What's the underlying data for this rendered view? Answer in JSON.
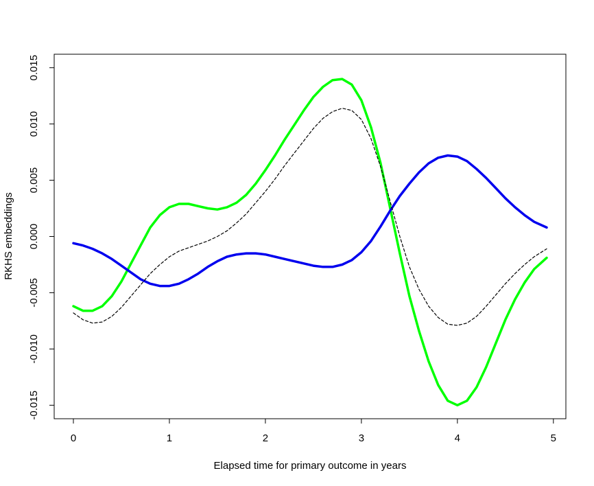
{
  "chart_data": {
    "type": "line",
    "title": "",
    "xlabel": "Elapsed time for primary outcome in years",
    "ylabel": "RKHS embeddings",
    "xlim": [
      -0.2,
      5.13
    ],
    "ylim": [
      -0.0162,
      0.0162
    ],
    "x_ticks": [
      0,
      1,
      2,
      3,
      4,
      5
    ],
    "x_tick_labels": [
      "0",
      "1",
      "2",
      "3",
      "4",
      "5"
    ],
    "y_ticks": [
      -0.015,
      -0.01,
      -0.005,
      0.0,
      0.005,
      0.01,
      0.015
    ],
    "y_tick_labels": [
      "-0.015",
      "-0.010",
      "-0.005",
      "0.000",
      "0.005",
      "0.010",
      "0.015"
    ],
    "grid": false,
    "legend": "none",
    "series": [
      {
        "color": "#00ff00",
        "style": "solid",
        "x": [
          0,
          0.1,
          0.2,
          0.3,
          0.4,
          0.5,
          0.6,
          0.7,
          0.8,
          0.9,
          1.0,
          1.1,
          1.2,
          1.3,
          1.4,
          1.5,
          1.6,
          1.7,
          1.8,
          1.9,
          2.0,
          2.1,
          2.2,
          2.3,
          2.4,
          2.5,
          2.6,
          2.7,
          2.8,
          2.9,
          3.0,
          3.1,
          3.2,
          3.3,
          3.4,
          3.5,
          3.6,
          3.7,
          3.8,
          3.9,
          4.0,
          4.1,
          4.2,
          4.3,
          4.4,
          4.5,
          4.6,
          4.7,
          4.8,
          4.93
        ],
        "y": [
          -0.0062,
          -0.0066,
          -0.0066,
          -0.0062,
          -0.0053,
          -0.004,
          -0.0024,
          -0.0008,
          0.0008,
          0.0019,
          0.0026,
          0.0029,
          0.0029,
          0.0027,
          0.0025,
          0.0024,
          0.0026,
          0.003,
          0.0037,
          0.0047,
          0.0059,
          0.0072,
          0.0086,
          0.0099,
          0.0112,
          0.0124,
          0.0133,
          0.0139,
          0.014,
          0.0135,
          0.0121,
          0.0097,
          0.0065,
          0.0025,
          -0.0015,
          -0.0053,
          -0.0084,
          -0.0111,
          -0.0132,
          -0.0146,
          -0.015,
          -0.0146,
          -0.0134,
          -0.0116,
          -0.0095,
          -0.0074,
          -0.0056,
          -0.0041,
          -0.0029,
          -0.0019
        ]
      },
      {
        "color": "#0000ee",
        "style": "solid",
        "x": [
          0,
          0.1,
          0.2,
          0.3,
          0.4,
          0.5,
          0.6,
          0.7,
          0.8,
          0.9,
          1.0,
          1.1,
          1.2,
          1.3,
          1.4,
          1.5,
          1.6,
          1.7,
          1.8,
          1.9,
          2.0,
          2.1,
          2.2,
          2.3,
          2.4,
          2.5,
          2.6,
          2.7,
          2.8,
          2.9,
          3.0,
          3.1,
          3.2,
          3.3,
          3.4,
          3.5,
          3.6,
          3.7,
          3.8,
          3.9,
          4.0,
          4.1,
          4.2,
          4.3,
          4.4,
          4.5,
          4.6,
          4.7,
          4.8,
          4.93
        ],
        "y": [
          -0.0006,
          -0.0008,
          -0.0011,
          -0.0015,
          -0.002,
          -0.0026,
          -0.0032,
          -0.0038,
          -0.0042,
          -0.0044,
          -0.0044,
          -0.0042,
          -0.0038,
          -0.0033,
          -0.0027,
          -0.0022,
          -0.0018,
          -0.0016,
          -0.0015,
          -0.0015,
          -0.0016,
          -0.0018,
          -0.002,
          -0.0022,
          -0.0024,
          -0.0026,
          -0.0027,
          -0.0027,
          -0.0025,
          -0.0021,
          -0.0014,
          -0.0004,
          0.0009,
          0.0023,
          0.0036,
          0.0047,
          0.0057,
          0.0065,
          0.007,
          0.0072,
          0.0071,
          0.0067,
          0.006,
          0.0052,
          0.0043,
          0.0034,
          0.0026,
          0.0019,
          0.0013,
          0.0008
        ]
      },
      {
        "color": "#000000",
        "style": "dashed",
        "x": [
          0,
          0.1,
          0.2,
          0.3,
          0.4,
          0.5,
          0.6,
          0.7,
          0.8,
          0.9,
          1.0,
          1.1,
          1.2,
          1.3,
          1.4,
          1.5,
          1.6,
          1.7,
          1.8,
          1.9,
          2.0,
          2.1,
          2.2,
          2.3,
          2.4,
          2.5,
          2.6,
          2.7,
          2.8,
          2.9,
          3.0,
          3.1,
          3.2,
          3.3,
          3.4,
          3.5,
          3.6,
          3.7,
          3.8,
          3.9,
          4.0,
          4.1,
          4.2,
          4.3,
          4.4,
          4.5,
          4.6,
          4.7,
          4.8,
          4.93
        ],
        "y": [
          -0.0068,
          -0.0074,
          -0.0077,
          -0.0076,
          -0.0071,
          -0.0063,
          -0.0053,
          -0.0043,
          -0.0033,
          -0.0025,
          -0.0018,
          -0.0013,
          -0.001,
          -0.0007,
          -0.0004,
          0.0,
          0.0005,
          0.0012,
          0.002,
          0.003,
          0.004,
          0.0051,
          0.0063,
          0.0074,
          0.0085,
          0.0096,
          0.0105,
          0.0111,
          0.0114,
          0.0112,
          0.0104,
          0.0087,
          0.0062,
          0.0031,
          0.0,
          -0.0027,
          -0.0047,
          -0.0062,
          -0.0072,
          -0.0078,
          -0.0079,
          -0.0077,
          -0.0071,
          -0.0062,
          -0.0052,
          -0.0042,
          -0.0033,
          -0.0025,
          -0.0018,
          -0.0011
        ]
      }
    ]
  }
}
